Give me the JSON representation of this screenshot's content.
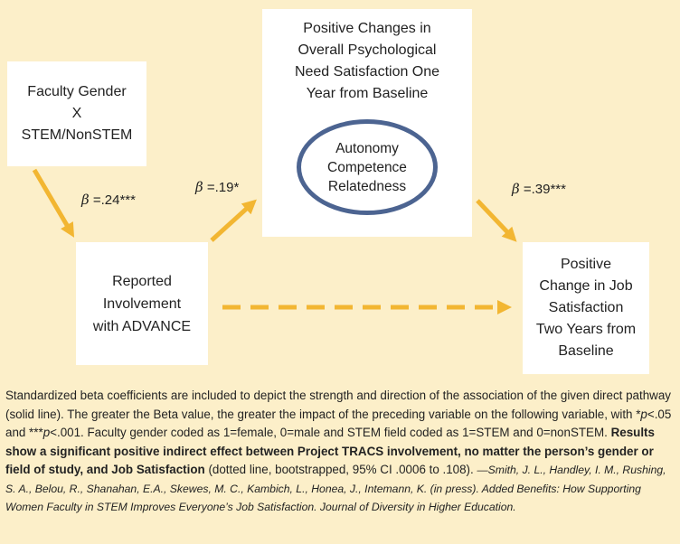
{
  "nodes": {
    "gender": {
      "lines": [
        "Faculty Gender",
        "X",
        "STEM/NonSTEM"
      ]
    },
    "involvement": {
      "lines": [
        "Reported",
        "Involvement",
        "with ADVANCE"
      ]
    },
    "need": {
      "lines": [
        "Positive Changes in",
        "Overall Psychological",
        "Need Satisfaction One",
        "Year from Baseline"
      ],
      "components": [
        "Autonomy",
        "Competence",
        "Relatedness"
      ]
    },
    "job": {
      "lines": [
        "Positive",
        "Change in Job",
        "Satisfaction",
        "Two Years from",
        "Baseline"
      ]
    }
  },
  "paths": [
    {
      "symbol": "β",
      "value": " =.24***"
    },
    {
      "symbol": "β",
      "value": " =.19*"
    },
    {
      "symbol": "β",
      "value": " =.39***"
    }
  ],
  "colors": {
    "background": "#fcefc9",
    "arrow": "#f2b632",
    "ellipse": "#4c6491",
    "box": "#ffffff"
  },
  "caption": {
    "p1": "Standardized beta coefficients are included to depict the strength and direction of the association of the given direct pathway (solid line). The greater the Beta value, the greater the impact of the preceding variable on the following variable, with *",
    "p_sym1": "p",
    "p2": "<.05 and ***",
    "p_sym2": "p",
    "p3": "<.001. Faculty gender coded as 1=female, 0=male and STEM field coded as 1=STEM and 0=nonSTEM. ",
    "bold": "Results show a significant positive indirect effect between Project TRACS involvement, no matter the person’s gender or field of study, and Job Satisfaction",
    "p4": " (dotted line, bootstrapped, 95% CI  .0006 to .108). ",
    "citation": "—Smith, J. L., Handley, I. M., Rushing, S. A., Belou, R., Shanahan, E.A., Skewes, M. C., Kambich, L., Honea, J., Intemann, K. (in press). Added Benefits:  How Supporting Women Faculty in STEM Improves Everyone’s Job Satisfaction. Journal of Diversity in Higher Education."
  }
}
